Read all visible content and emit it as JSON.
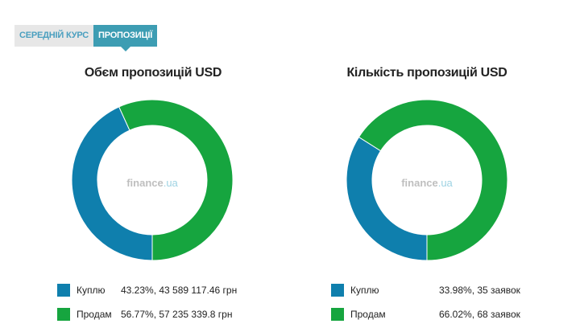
{
  "tabs": [
    {
      "label": "СЕРЕДНІЙ КУРС",
      "active": false
    },
    {
      "label": "ПРОПОЗИЦІЇ",
      "active": true
    }
  ],
  "colors": {
    "buy": "#0f7fad",
    "sell": "#16a53f"
  },
  "watermark": {
    "main": "finance",
    "suffix": ".ua"
  },
  "chart_data": [
    {
      "type": "pie",
      "title": "Обєм пропозицій USD",
      "categories": [
        "Куплю",
        "Продам"
      ],
      "values": [
        43.23,
        56.77
      ],
      "labels": [
        "43.23%, 43 589 117.46 грн",
        "56.77%, 57 235 339.8 грн"
      ]
    },
    {
      "type": "pie",
      "title": "Кількість пропозицій USD",
      "categories": [
        "Куплю",
        "Продам"
      ],
      "values": [
        33.98,
        66.02
      ],
      "labels": [
        "33.98%, 35 заявок",
        "66.02%, 68 заявок"
      ]
    }
  ]
}
